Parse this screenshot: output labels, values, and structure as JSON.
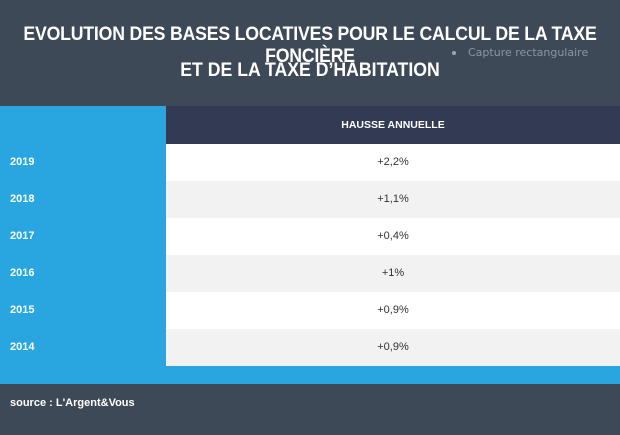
{
  "chart_data": {
    "type": "table",
    "title_line1": "EVOLUTION DES BASES LOCATIVES POUR LE CALCUL DE LA TAXE FONCIÈRE",
    "title_line2": "ET DE LA TAXE D’HABITATION",
    "column_header": "HAUSSE ANNUELLE",
    "rows": [
      {
        "year": "2019",
        "value": "+2,2%"
      },
      {
        "year": "2018",
        "value": "+1,1%"
      },
      {
        "year": "2017",
        "value": "+0,4%"
      },
      {
        "year": "2016",
        "value": "+1%"
      },
      {
        "year": "2015",
        "value": "+0,9%"
      },
      {
        "year": "2014",
        "value": "+0,9%"
      }
    ],
    "values_percent": [
      2.2,
      1.1,
      0.4,
      1.0,
      0.9,
      0.9
    ],
    "source": "source : L'Argent&Vous"
  },
  "overlay": {
    "ghost_text": "Capture rectangulaire"
  },
  "colors": {
    "background": "#3e4957",
    "accent_blue": "#29a6e0",
    "header_navy": "#333a54"
  }
}
